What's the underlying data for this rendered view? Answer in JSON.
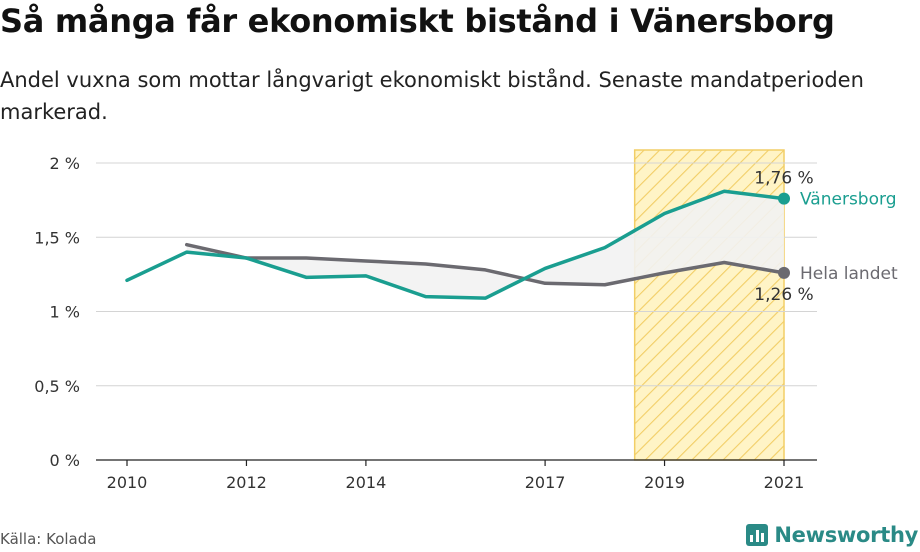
{
  "title": "Så många får ekonomiskt bistånd i Vänersborg",
  "subtitle": "Andel vuxna som mottar långvarigt ekonomiskt bistånd. Senaste mandatperioden markerad.",
  "source": "Källa: Kolada",
  "brand": "Newsworthy",
  "colors": {
    "vanersborg": "#1a9e90",
    "riket": "#6b6a70",
    "highlight_fill": "#fff4c6",
    "highlight_stripe": "#f2ce66",
    "gap_fill": "#f2f2f2",
    "brand": "#2a8a86"
  },
  "chart_data": {
    "type": "line",
    "title": "Så många får ekonomiskt bistånd i Vänersborg",
    "xlabel": "",
    "ylabel": "",
    "xlim": [
      2009.5,
      2021.6
    ],
    "ylim": [
      0,
      2
    ],
    "yticks": [
      0,
      0.5,
      1,
      1.5,
      2
    ],
    "ytick_labels": [
      "0 %",
      "0,5 %",
      "1 %",
      "1,5 %",
      "2 %"
    ],
    "xticks": [
      2010,
      2012,
      2014,
      2017,
      2019,
      2021
    ],
    "xtick_labels": [
      "2010",
      "2012",
      "2014",
      "2017",
      "2019",
      "2021"
    ],
    "grid": true,
    "highlight_period": [
      2018.5,
      2021
    ],
    "series": [
      {
        "name": "Vänersborg",
        "x": [
          2010,
          2011,
          2012,
          2013,
          2014,
          2015,
          2016,
          2017,
          2018,
          2019,
          2020,
          2021
        ],
        "values": [
          1.21,
          1.4,
          1.36,
          1.23,
          1.24,
          1.1,
          1.09,
          1.29,
          1.43,
          1.66,
          1.81,
          1.76
        ],
        "end_label": "1,76 %"
      },
      {
        "name": "Hela landet",
        "x": [
          2011,
          2012,
          2013,
          2014,
          2015,
          2016,
          2017,
          2018,
          2019,
          2020,
          2021
        ],
        "values": [
          1.45,
          1.36,
          1.36,
          1.34,
          1.32,
          1.28,
          1.19,
          1.18,
          1.26,
          1.33,
          1.26
        ],
        "end_label": "1,26 %"
      }
    ]
  }
}
